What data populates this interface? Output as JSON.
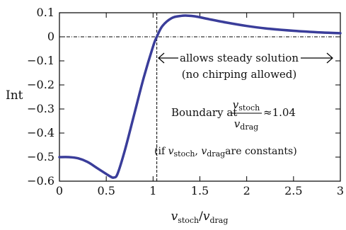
{
  "chart_data": {
    "type": "line",
    "title": "",
    "xlabel": "v_stoch/v_drag",
    "ylabel": "Int",
    "xlim": [
      0,
      3
    ],
    "ylim": [
      -0.6,
      0.1
    ],
    "x_ticks": [
      "0",
      "0.5",
      "1",
      "1.5",
      "2",
      "2.5",
      "3"
    ],
    "y_ticks": [
      "0.1",
      "0",
      "−0.1",
      "−0.2",
      "−0.3",
      "−0.4",
      "−0.5",
      "−0.6"
    ],
    "x_tick_values": [
      0,
      0.5,
      1,
      1.5,
      2,
      2.5,
      3
    ],
    "y_tick_values": [
      0.1,
      0,
      -0.1,
      -0.2,
      -0.3,
      -0.4,
      -0.5,
      -0.6
    ],
    "grid": false,
    "series": [
      {
        "color": "#3a3d9a",
        "x": [
          0,
          0.1,
          0.2,
          0.3,
          0.4,
          0.5,
          0.55,
          0.58,
          0.62,
          0.7,
          0.8,
          0.9,
          1.0,
          1.04,
          1.1,
          1.2,
          1.3,
          1.36,
          1.45,
          1.6,
          1.8,
          2.0,
          2.2,
          2.5,
          2.8,
          3.0
        ],
        "y": [
          -0.5,
          -0.5,
          -0.505,
          -0.52,
          -0.545,
          -0.57,
          -0.582,
          -0.585,
          -0.57,
          -0.47,
          -0.32,
          -0.17,
          -0.04,
          0.0,
          0.045,
          0.078,
          0.087,
          0.088,
          0.085,
          0.073,
          0.058,
          0.045,
          0.035,
          0.025,
          0.018,
          0.015
        ]
      }
    ],
    "reference_lines": {
      "vertical_x": 1.04,
      "horizontal_y": 0
    },
    "annotations": {
      "arrow_text_1": "allows steady solution",
      "arrow_text_2": "(no chirping allowed)",
      "boundary_prefix": "Boundary at",
      "frac_num": "v_stoch",
      "frac_den": "v_drag",
      "boundary_value": "≈1.04",
      "note_prefix": "(if",
      "note_suffix": "are constants)"
    }
  }
}
